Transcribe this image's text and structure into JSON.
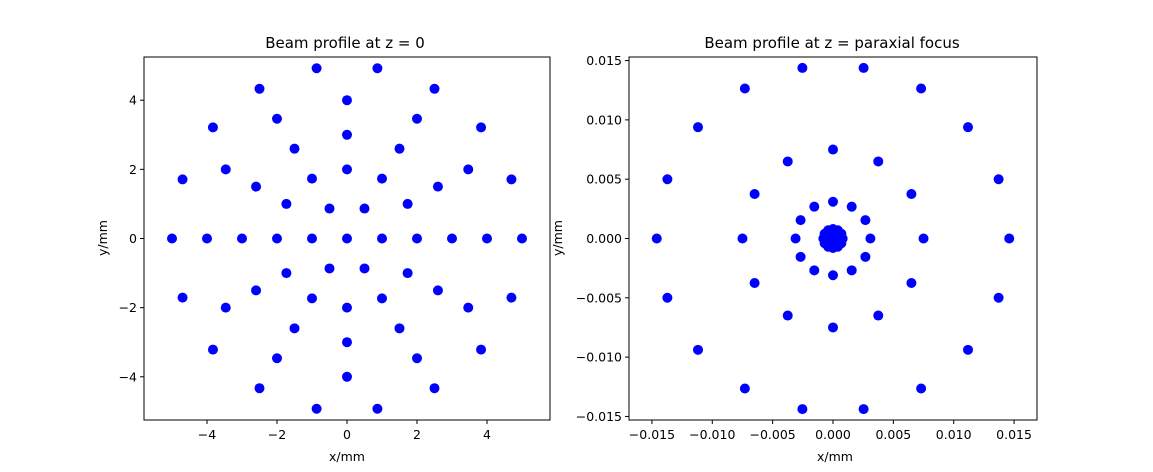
{
  "chart_data": [
    {
      "type": "scatter",
      "title": "Beam profile at z = 0",
      "xlabel": "x/mm",
      "ylabel": "y/mm",
      "xlim": [
        -5.8,
        5.8
      ],
      "ylim": [
        -5.25,
        5.25
      ],
      "xticks": [
        -4,
        -2,
        0,
        2,
        4
      ],
      "yticks": [
        -4,
        -2,
        0,
        2,
        4
      ],
      "tick_labels_x": [
        "−4",
        "−2",
        "0",
        "2",
        "4"
      ],
      "tick_labels_y": [
        "−4",
        "−2",
        "0",
        "2",
        "4"
      ],
      "marker_color": "#0000ff",
      "grid": false,
      "legend": "none",
      "rings": [
        {
          "radius": 0,
          "count": 1
        },
        {
          "radius": 1,
          "count": 6
        },
        {
          "radius": 2,
          "count": 12
        },
        {
          "radius": 3,
          "count": 12
        },
        {
          "radius": 4,
          "count": 12
        },
        {
          "radius": 5,
          "count": 18
        }
      ],
      "points": []
    },
    {
      "type": "scatter",
      "title": "Beam profile at z = paraxial focus",
      "xlabel": "x/mm",
      "ylabel": "y/mm",
      "xlim": [
        -0.0169,
        0.0169
      ],
      "ylim": [
        -0.0153,
        0.0153
      ],
      "xticks": [
        -0.015,
        -0.01,
        -0.005,
        0,
        0.005,
        0.01,
        0.015
      ],
      "yticks": [
        -0.015,
        -0.01,
        -0.005,
        0,
        0.005,
        0.01,
        0.015
      ],
      "tick_labels_x": [
        "−0.015",
        "−0.010",
        "−0.005",
        "0.000",
        "0.005",
        "0.010",
        "0.015"
      ],
      "tick_labels_y": [
        "−0.015",
        "−0.010",
        "−0.005",
        "0.000",
        "0.005",
        "0.010",
        "0.015"
      ],
      "marker_color": "#0000ff",
      "grid": false,
      "legend": "none",
      "rings": [
        {
          "radius": 0,
          "count": 1
        },
        {
          "radius": 0.0001,
          "count": 6
        },
        {
          "radius": 0.0008,
          "count": 12
        },
        {
          "radius": 0.0031,
          "count": 12
        },
        {
          "radius": 0.0075,
          "count": 12
        },
        {
          "radius": 0.0146,
          "count": 18
        }
      ],
      "points": []
    }
  ]
}
